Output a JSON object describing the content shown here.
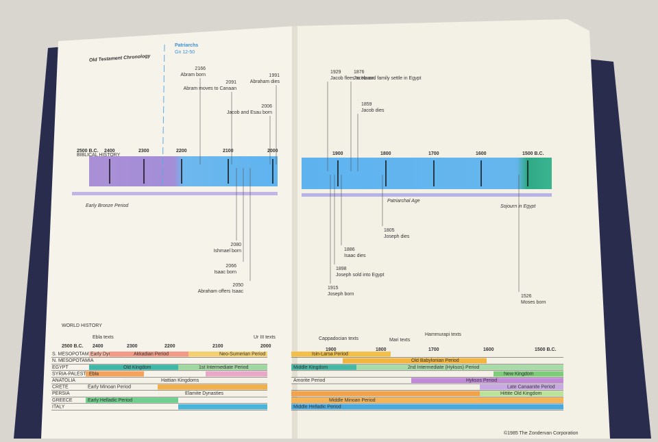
{
  "left_page": {
    "title": "Old Testament Chronology",
    "patriarchs": "Patriarchs",
    "patriarchs_ref": "Gn 12-50",
    "biblical_history": "BIBLICAL HISTORY",
    "timeline_years": [
      "2500 B.C.",
      "2400",
      "2300",
      "2200",
      "2100",
      "2000"
    ],
    "events_above": [
      {
        "year": "2166",
        "text": "Abram born"
      },
      {
        "year": "2091",
        "text": "Abram moves to Canaan"
      },
      {
        "year": "2006",
        "text": "Jacob and Esau born"
      },
      {
        "year": "1991",
        "text": "Abraham dies"
      }
    ],
    "events_below": [
      {
        "year": "2080",
        "text": "Ishmael born"
      },
      {
        "year": "2066",
        "text": "Isaac born"
      },
      {
        "year": "2050",
        "text": "Abraham offers Isaac"
      }
    ],
    "period": "Early Bronze Period",
    "world_history": "WORLD HISTORY",
    "world_years": [
      "2500 B.C.",
      "2400",
      "2300",
      "2200",
      "2100",
      "2000"
    ],
    "text_notes": [
      "Ebla texts",
      "Ur III texts"
    ],
    "regions": [
      "S. MESOPOTAMIA",
      "N. MESOPOTAMIA",
      "EGYPT",
      "SYRIA-PALESTINE",
      "ANATOLIA",
      "CRETE",
      "PERSIA",
      "GREECE",
      "ITALY"
    ],
    "bars": [
      "Early Dynastic Period",
      "Akkadian Period",
      "Neo-Sumerian Period",
      "Old Kingdom",
      "1st Intermediate Period",
      "Ebla",
      "Hattian Kingdoms",
      "Early Minoan Period",
      "Elamite Dynasties",
      "Early Helladic Period"
    ]
  },
  "right_page": {
    "timeline_years": [
      "1900",
      "1800",
      "1700",
      "1600",
      "1500 B.C."
    ],
    "events_above": [
      {
        "year": "1929",
        "text": "Jacob flees to Haran"
      },
      {
        "year": "1876",
        "text": "Jacob and family settle in Egypt"
      },
      {
        "year": "1859",
        "text": "Jacob dies"
      }
    ],
    "events_below": [
      {
        "year": "1805",
        "text": "Joseph dies"
      },
      {
        "year": "1886",
        "text": "Isaac dies"
      },
      {
        "year": "1898",
        "text": "Joseph sold into Egypt"
      },
      {
        "year": "1915",
        "text": "Joseph born"
      },
      {
        "year": "1526",
        "text": "Moses born"
      }
    ],
    "periods": [
      "Patriarchal Age",
      "Sojourn in Egypt"
    ],
    "world_years": [
      "1900",
      "1800",
      "1700",
      "1600",
      "1500 B.C."
    ],
    "text_notes": [
      "Cappadocian texts",
      "Mari texts",
      "Hammurapi texts"
    ],
    "bars": [
      "Isin-Larsa Period",
      "Old Babylonian Period",
      "Middle Kingdom",
      "2nd Intermediate (Hyksos) Period",
      "New Kingdom",
      "Amorite Period",
      "Hyksos Period",
      "Late Canaanite Period",
      "Hittite Old Kingdom",
      "Middle Minoan Period",
      "Middle Helladic Period"
    ],
    "copyright": "©1985 The Zondervan Corporation"
  }
}
